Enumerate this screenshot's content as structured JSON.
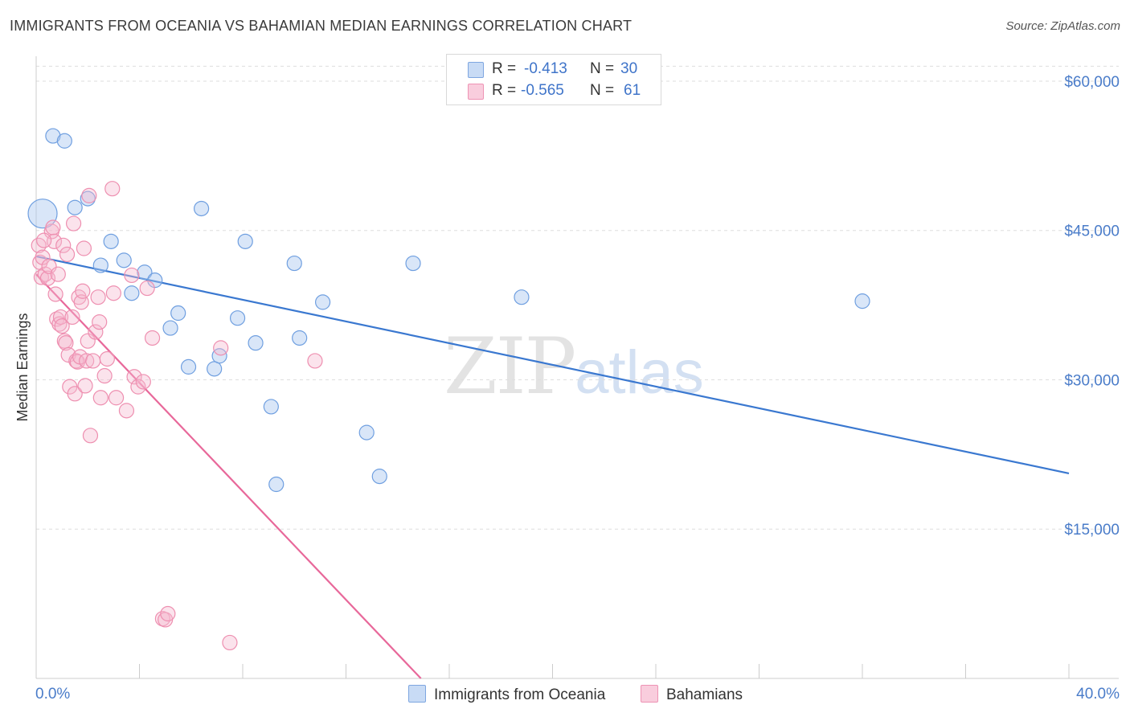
{
  "title": "IMMIGRANTS FROM OCEANIA VS BAHAMIAN MEDIAN EARNINGS CORRELATION CHART",
  "source": "Source: ZipAtlas.com",
  "watermark": {
    "zip": "ZIP",
    "atlas": "atlas"
  },
  "legend_stats": [
    {
      "r_label": "R =",
      "r_value": "-0.413",
      "n_label": "N =",
      "n_value": "30"
    },
    {
      "r_label": "R =",
      "r_value": "-0.565",
      "n_label": "N =",
      "n_value": "61"
    }
  ],
  "chart_data": {
    "type": "scatter",
    "title": "IMMIGRANTS FROM OCEANIA VS BAHAMIAN MEDIAN EARNINGS CORRELATION CHART",
    "xlabel": "",
    "ylabel": "Median Earnings",
    "xlim": [
      0,
      40
    ],
    "ylim": [
      0,
      62500
    ],
    "x_tick_labels": [
      "0.0%",
      "40.0%"
    ],
    "y_ticks": [
      15000,
      30000,
      45000,
      60000
    ],
    "y_tick_labels": [
      "$15,000",
      "$30,000",
      "$45,000",
      "$60,000"
    ],
    "grid": true,
    "legend_position": "bottom",
    "colors": {
      "oceania": "#6f9fe0",
      "oceania_line": "#3a78d0",
      "bahamians": "#ee8fb0",
      "bahamians_line": "#e8689a"
    },
    "series": [
      {
        "name": "Immigrants from Oceania",
        "r": -0.413,
        "n": 30,
        "trend": {
          "x": [
            0,
            40
          ],
          "y": [
            42400,
            20600
          ]
        },
        "points": [
          {
            "x": 0.25,
            "y": 46700,
            "big": true
          },
          {
            "x": 0.65,
            "y": 54500
          },
          {
            "x": 1.1,
            "y": 54000
          },
          {
            "x": 1.5,
            "y": 47300
          },
          {
            "x": 2.0,
            "y": 48200
          },
          {
            "x": 2.5,
            "y": 41500
          },
          {
            "x": 2.9,
            "y": 43900
          },
          {
            "x": 3.4,
            "y": 42000
          },
          {
            "x": 3.7,
            "y": 38700
          },
          {
            "x": 4.2,
            "y": 40800
          },
          {
            "x": 4.6,
            "y": 40000
          },
          {
            "x": 5.2,
            "y": 35200
          },
          {
            "x": 5.5,
            "y": 36700
          },
          {
            "x": 5.9,
            "y": 31300
          },
          {
            "x": 6.4,
            "y": 47200
          },
          {
            "x": 6.9,
            "y": 31100
          },
          {
            "x": 7.1,
            "y": 32400
          },
          {
            "x": 7.8,
            "y": 36200
          },
          {
            "x": 8.1,
            "y": 43900
          },
          {
            "x": 8.5,
            "y": 33700
          },
          {
            "x": 9.1,
            "y": 27300
          },
          {
            "x": 9.3,
            "y": 19500
          },
          {
            "x": 10.0,
            "y": 41700
          },
          {
            "x": 10.2,
            "y": 34200
          },
          {
            "x": 11.1,
            "y": 37800
          },
          {
            "x": 12.8,
            "y": 24700
          },
          {
            "x": 13.3,
            "y": 20300
          },
          {
            "x": 14.6,
            "y": 41700
          },
          {
            "x": 18.8,
            "y": 38300
          },
          {
            "x": 32.0,
            "y": 37900
          }
        ]
      },
      {
        "name": "Bahamians",
        "r": -0.565,
        "n": 61,
        "trend": {
          "x": [
            0,
            14.9
          ],
          "y": [
            40600,
            0
          ]
        },
        "points": [
          {
            "x": 0.1,
            "y": 43500
          },
          {
            "x": 0.15,
            "y": 41800
          },
          {
            "x": 0.2,
            "y": 40300
          },
          {
            "x": 0.25,
            "y": 42300
          },
          {
            "x": 0.35,
            "y": 40600
          },
          {
            "x": 0.45,
            "y": 40200
          },
          {
            "x": 0.5,
            "y": 41400
          },
          {
            "x": 0.6,
            "y": 44900
          },
          {
            "x": 0.65,
            "y": 45300
          },
          {
            "x": 0.7,
            "y": 43900
          },
          {
            "x": 0.75,
            "y": 38600
          },
          {
            "x": 0.8,
            "y": 36100
          },
          {
            "x": 0.85,
            "y": 40600
          },
          {
            "x": 0.9,
            "y": 35600
          },
          {
            "x": 0.95,
            "y": 36300
          },
          {
            "x": 1.0,
            "y": 35400
          },
          {
            "x": 1.05,
            "y": 43500
          },
          {
            "x": 1.1,
            "y": 33900
          },
          {
            "x": 1.15,
            "y": 33700
          },
          {
            "x": 1.2,
            "y": 42600
          },
          {
            "x": 1.25,
            "y": 32500
          },
          {
            "x": 1.3,
            "y": 29300
          },
          {
            "x": 1.4,
            "y": 36300
          },
          {
            "x": 1.45,
            "y": 45700
          },
          {
            "x": 1.5,
            "y": 28600
          },
          {
            "x": 1.55,
            "y": 31900
          },
          {
            "x": 1.6,
            "y": 31800
          },
          {
            "x": 1.65,
            "y": 38300
          },
          {
            "x": 1.7,
            "y": 32300
          },
          {
            "x": 1.75,
            "y": 37800
          },
          {
            "x": 1.8,
            "y": 38900
          },
          {
            "x": 1.85,
            "y": 43200
          },
          {
            "x": 1.9,
            "y": 29400
          },
          {
            "x": 1.95,
            "y": 31900
          },
          {
            "x": 2.0,
            "y": 33900
          },
          {
            "x": 2.05,
            "y": 48500
          },
          {
            "x": 2.1,
            "y": 24400
          },
          {
            "x": 2.2,
            "y": 31900
          },
          {
            "x": 2.3,
            "y": 34800
          },
          {
            "x": 2.4,
            "y": 38300
          },
          {
            "x": 2.45,
            "y": 35800
          },
          {
            "x": 2.5,
            "y": 28200
          },
          {
            "x": 2.65,
            "y": 30400
          },
          {
            "x": 2.75,
            "y": 32100
          },
          {
            "x": 2.95,
            "y": 49200
          },
          {
            "x": 3.0,
            "y": 38700
          },
          {
            "x": 3.1,
            "y": 28200
          },
          {
            "x": 3.5,
            "y": 26900
          },
          {
            "x": 3.7,
            "y": 40500
          },
          {
            "x": 3.8,
            "y": 30300
          },
          {
            "x": 3.95,
            "y": 29300
          },
          {
            "x": 4.15,
            "y": 29800
          },
          {
            "x": 4.3,
            "y": 39200
          },
          {
            "x": 4.5,
            "y": 34200
          },
          {
            "x": 4.9,
            "y": 6000
          },
          {
            "x": 5.0,
            "y": 5900
          },
          {
            "x": 5.1,
            "y": 6500
          },
          {
            "x": 7.15,
            "y": 33200
          },
          {
            "x": 7.5,
            "y": 3600
          },
          {
            "x": 10.8,
            "y": 31900
          },
          {
            "x": 0.3,
            "y": 44000
          }
        ]
      }
    ]
  }
}
